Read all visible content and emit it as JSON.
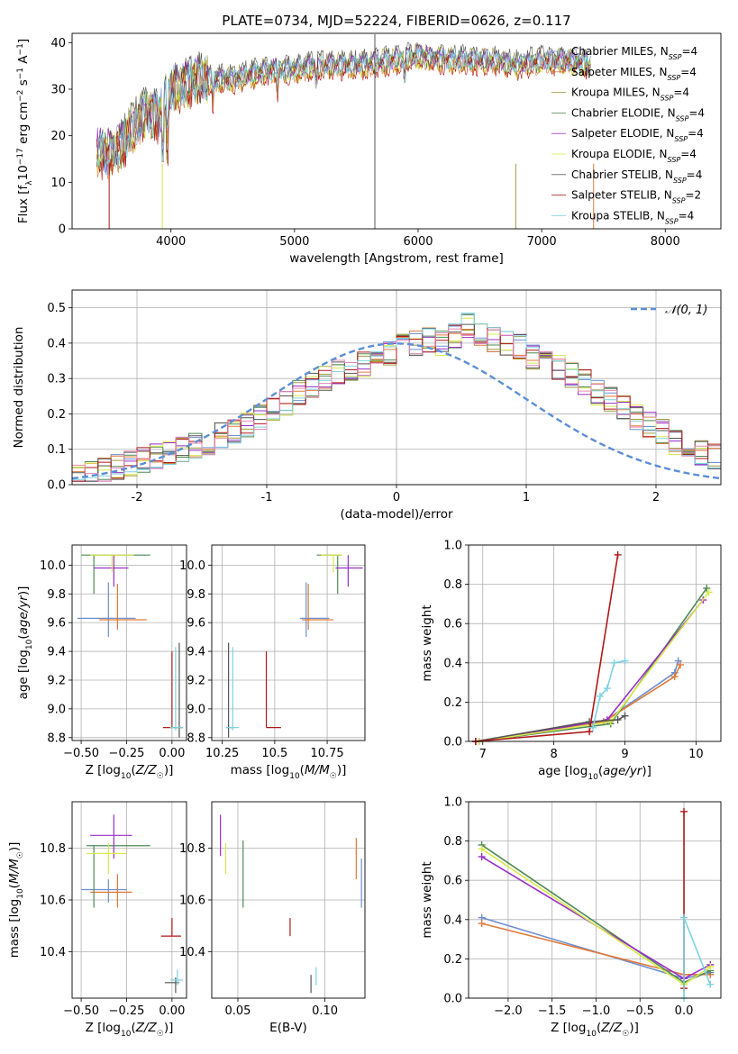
{
  "figure_title": "PLATE=0734, MJD=52224, FIBERID=0626, z=0.117",
  "colors": {
    "Chabrier MILES": "#6e8fd0",
    "Salpeter MILES": "#e07a3a",
    "Kroupa MILES": "#a39a3c",
    "Chabrier ELODIE": "#4f8a55",
    "Salpeter ELODIE": "#9a2ec9",
    "Kroupa ELODIE": "#d9e84a",
    "Chabrier STELIB": "#555555",
    "Salpeter STELIB": "#b01818",
    "Kroupa STELIB": "#7dd2e0",
    "hist_pink": "#e48ab4",
    "gauss": "#5b8ed6"
  },
  "chart_data": [
    {
      "id": "spectrum",
      "type": "line",
      "title": "PLATE=0734, MJD=52224, FIBERID=0626, z=0.117",
      "xlabel": "wavelength [Angstrom, rest frame]",
      "ylabel": "Flux [f_λ 10^-17 erg cm^-2 s^-1 A^-1]",
      "xlim": [
        3200,
        8450
      ],
      "ylim": [
        0,
        42
      ],
      "xticks": [
        4000,
        5000,
        6000,
        7000,
        8000
      ],
      "yticks": [
        0,
        10,
        20,
        30,
        40
      ],
      "legend_position": "top-right",
      "x": [
        3400,
        3500,
        3600,
        3700,
        3800,
        3900,
        4000,
        4200,
        4500,
        4800,
        5000,
        5200,
        5500,
        5800,
        6000,
        6300,
        6600,
        6800,
        7000,
        7200,
        7400
      ],
      "y": [
        16.5,
        16,
        18,
        22,
        25,
        24,
        30,
        32,
        32,
        34,
        34,
        35,
        35,
        36,
        37,
        36,
        36,
        35,
        36,
        36,
        35
      ],
      "series": [
        {
          "name": "Chabrier MILES",
          "label": "Chabrier MILES, N",
          "sub": "SSP",
          "suffix": "=4"
        },
        {
          "name": "Salpeter MILES",
          "label": "Salpeter MILES, N",
          "sub": "SSP",
          "suffix": "=4"
        },
        {
          "name": "Kroupa MILES",
          "label": "Kroupa MILES, N",
          "sub": "SSP",
          "suffix": "=4"
        },
        {
          "name": "Chabrier ELODIE",
          "label": "Chabrier ELODIE, N",
          "sub": "SSP",
          "suffix": "=4"
        },
        {
          "name": "Salpeter ELODIE",
          "label": "Salpeter ELODIE, N",
          "sub": "SSP",
          "suffix": "=4"
        },
        {
          "name": "Kroupa ELODIE",
          "label": "Kroupa ELODIE, N",
          "sub": "SSP",
          "suffix": "=4"
        },
        {
          "name": "Chabrier STELIB",
          "label": "Chabrier STELIB, N",
          "sub": "SSP",
          "suffix": "=4"
        },
        {
          "name": "Salpeter STELIB",
          "label": "Salpeter STELIB, N",
          "sub": "SSP",
          "suffix": "=2"
        },
        {
          "name": "Kroupa STELIB",
          "label": "Kroupa STELIB, N",
          "sub": "SSP",
          "suffix": "=4"
        }
      ]
    },
    {
      "id": "residuals",
      "type": "line",
      "xlabel": "(data-model)/error",
      "ylabel": "Normed distribution",
      "xlim": [
        -2.5,
        2.5
      ],
      "ylim": [
        0,
        0.55
      ],
      "xticks": [
        -2,
        -1,
        0,
        1,
        2
      ],
      "yticks": [
        0.0,
        0.1,
        0.2,
        0.3,
        0.4,
        0.5
      ],
      "grid": true,
      "legend_position": "top-right",
      "gauss_label": "𝒩(0, 1)",
      "bin_width": 0.1,
      "bin_start": -2.5,
      "hist_values": [
        0.02,
        0.03,
        0.04,
        0.05,
        0.06,
        0.07,
        0.08,
        0.09,
        0.1,
        0.11,
        0.12,
        0.14,
        0.15,
        0.17,
        0.19,
        0.21,
        0.23,
        0.26,
        0.28,
        0.3,
        0.32,
        0.33,
        0.34,
        0.36,
        0.37,
        0.39,
        0.4,
        0.41,
        0.4,
        0.42,
        0.45,
        0.42,
        0.41,
        0.4,
        0.39,
        0.36,
        0.35,
        0.33,
        0.31,
        0.29,
        0.26,
        0.24,
        0.22,
        0.19,
        0.17,
        0.15,
        0.12,
        0.11,
        0.09,
        0.08
      ]
    },
    {
      "id": "age_vs_Z",
      "type": "scatter",
      "xlabel": "Z [log10(Z/Z☉)]",
      "ylabel": "age [log10(age/yr)]",
      "xlim": [
        -0.55,
        0.08
      ],
      "ylim": [
        8.78,
        10.14
      ],
      "xticks": [
        -0.5,
        -0.25,
        0.0
      ],
      "xticklabels": [
        "−0.50",
        "−0.25",
        "0.00"
      ],
      "yticks": [
        8.8,
        9.0,
        9.2,
        9.4,
        9.6,
        9.8,
        10.0
      ],
      "grid": true,
      "points": [
        {
          "s": "Chabrier MILES",
          "x": -0.35,
          "y": 9.63,
          "xlo": -0.52,
          "xhi": -0.2,
          "ylo": 9.5,
          "yhi": 9.88
        },
        {
          "s": "Salpeter MILES",
          "x": -0.3,
          "y": 9.62,
          "xlo": -0.4,
          "xhi": -0.14,
          "ylo": 9.55,
          "yhi": 9.87
        },
        {
          "s": "Chabrier ELODIE",
          "x": -0.43,
          "y": 10.07,
          "xlo": -0.5,
          "xhi": -0.12,
          "ylo": 9.8,
          "yhi": 10.07
        },
        {
          "s": "Salpeter ELODIE",
          "x": -0.32,
          "y": 9.98,
          "xlo": -0.43,
          "xhi": -0.24,
          "ylo": 9.85,
          "yhi": 10.07
        },
        {
          "s": "Kroupa ELODIE",
          "x": -0.33,
          "y": 10.07,
          "xlo": -0.45,
          "xhi": -0.21,
          "ylo": 9.95,
          "yhi": 10.07
        },
        {
          "s": "Salpeter STELIB",
          "x": 0.0,
          "y": 8.87,
          "xlo": -0.05,
          "xhi": 0.0,
          "ylo": 8.87,
          "yhi": 9.4
        },
        {
          "s": "Chabrier STELIB",
          "x": 0.04,
          "y": 8.87,
          "xlo": 0.0,
          "xhi": 0.06,
          "ylo": 8.8,
          "yhi": 9.46
        },
        {
          "s": "Kroupa STELIB",
          "x": 0.02,
          "y": 8.87,
          "xlo": -0.01,
          "xhi": 0.06,
          "ylo": 8.85,
          "yhi": 9.43
        }
      ]
    },
    {
      "id": "age_vs_mass",
      "type": "scatter",
      "xlabel": "mass [log10(M/M☉)]",
      "xlim": [
        10.2,
        10.93
      ],
      "ylim": [
        8.78,
        10.14
      ],
      "xticks": [
        10.25,
        10.5,
        10.75
      ],
      "yticks": [
        8.8,
        9.0,
        9.2,
        9.4,
        9.6,
        9.8,
        10.0
      ],
      "grid": true,
      "points": [
        {
          "s": "Chabrier MILES",
          "x": 10.65,
          "y": 9.63,
          "xlo": 10.62,
          "xhi": 10.76,
          "ylo": 9.5,
          "yhi": 9.88
        },
        {
          "s": "Salpeter MILES",
          "x": 10.66,
          "y": 9.62,
          "xlo": 10.63,
          "xhi": 10.78,
          "ylo": 9.55,
          "yhi": 9.87
        },
        {
          "s": "Chabrier ELODIE",
          "x": 10.8,
          "y": 10.07,
          "xlo": 10.7,
          "xhi": 10.82,
          "ylo": 9.8,
          "yhi": 10.07
        },
        {
          "s": "Salpeter ELODIE",
          "x": 10.85,
          "y": 9.98,
          "xlo": 10.79,
          "xhi": 10.92,
          "ylo": 9.85,
          "yhi": 10.07
        },
        {
          "s": "Kroupa ELODIE",
          "x": 10.78,
          "y": 10.07,
          "xlo": 10.72,
          "xhi": 10.82,
          "ylo": 9.95,
          "yhi": 10.07
        },
        {
          "s": "Salpeter STELIB",
          "x": 10.46,
          "y": 8.87,
          "xlo": 10.46,
          "xhi": 10.53,
          "ylo": 8.87,
          "yhi": 9.4
        },
        {
          "s": "Chabrier STELIB",
          "x": 10.28,
          "y": 8.87,
          "xlo": 10.27,
          "xhi": 10.3,
          "ylo": 8.8,
          "yhi": 9.46
        },
        {
          "s": "Kroupa STELIB",
          "x": 10.3,
          "y": 8.87,
          "xlo": 10.27,
          "xhi": 10.33,
          "ylo": 8.85,
          "yhi": 9.43
        }
      ]
    },
    {
      "id": "weight_vs_age",
      "type": "line",
      "xlabel": "age [log10(age/yr)]",
      "ylabel": "mass weight",
      "xlim": [
        6.8,
        10.35
      ],
      "ylim": [
        0,
        1.0
      ],
      "xticks": [
        7,
        8,
        9,
        10
      ],
      "yticks": [
        0.0,
        0.2,
        0.4,
        0.6,
        0.8,
        1.0
      ],
      "grid": true,
      "series": [
        {
          "s": "Chabrier MILES",
          "x": [
            6.9,
            8.7,
            9.7,
            9.75
          ],
          "y": [
            0.0,
            0.1,
            0.35,
            0.41
          ]
        },
        {
          "s": "Salpeter MILES",
          "x": [
            6.9,
            8.7,
            9.7,
            9.78
          ],
          "y": [
            0.0,
            0.1,
            0.33,
            0.39
          ]
        },
        {
          "s": "Chabrier ELODIE",
          "x": [
            6.95,
            8.8,
            10.15
          ],
          "y": [
            0.0,
            0.09,
            0.78
          ]
        },
        {
          "s": "Salpeter ELODIE",
          "x": [
            6.95,
            8.75,
            10.1
          ],
          "y": [
            0.0,
            0.11,
            0.72
          ]
        },
        {
          "s": "Kroupa ELODIE",
          "x": [
            6.95,
            8.8,
            10.18
          ],
          "y": [
            0.0,
            0.1,
            0.76
          ]
        },
        {
          "s": "Chabrier STELIB",
          "x": [
            6.9,
            8.5,
            8.9,
            9.0
          ],
          "y": [
            0.0,
            0.1,
            0.11,
            0.13
          ]
        },
        {
          "s": "Salpeter STELIB",
          "x": [
            6.9,
            8.5,
            8.9
          ],
          "y": [
            0.0,
            0.05,
            0.95
          ]
        },
        {
          "s": "Kroupa STELIB",
          "x": [
            8.55,
            8.65,
            8.75,
            8.85,
            9.0
          ],
          "y": [
            0.07,
            0.23,
            0.27,
            0.4,
            0.41
          ]
        }
      ]
    },
    {
      "id": "mass_vs_Z",
      "type": "scatter",
      "xlabel": "Z [log10(Z/Z☉)]",
      "ylabel": "mass [log10(M/M☉)]",
      "xlim": [
        -0.55,
        0.08
      ],
      "ylim": [
        10.22,
        10.98
      ],
      "xticks": [
        -0.5,
        -0.25,
        0.0
      ],
      "xticklabels": [
        "−0.50",
        "−0.25",
        "0.00"
      ],
      "yticks": [
        10.4,
        10.6,
        10.8
      ],
      "grid": true,
      "points": [
        {
          "s": "Chabrier MILES",
          "x": -0.35,
          "y": 10.64,
          "xlo": -0.5,
          "xhi": -0.25,
          "ylo": 10.59,
          "yhi": 10.68
        },
        {
          "s": "Salpeter MILES",
          "x": -0.3,
          "y": 10.63,
          "xlo": -0.45,
          "xhi": -0.22,
          "ylo": 10.57,
          "yhi": 10.7
        },
        {
          "s": "Chabrier ELODIE",
          "x": -0.43,
          "y": 10.81,
          "xlo": -0.47,
          "xhi": -0.12,
          "ylo": 10.57,
          "yhi": 10.81
        },
        {
          "s": "Salpeter ELODIE",
          "x": -0.32,
          "y": 10.85,
          "xlo": -0.45,
          "xhi": -0.22,
          "ylo": 10.76,
          "yhi": 10.93
        },
        {
          "s": "Kroupa ELODIE",
          "x": -0.35,
          "y": 10.78,
          "xlo": -0.47,
          "xhi": -0.25,
          "ylo": 10.7,
          "yhi": 10.82
        },
        {
          "s": "Salpeter STELIB",
          "x": 0.0,
          "y": 10.46,
          "xlo": -0.06,
          "xhi": 0.05,
          "ylo": 10.46,
          "yhi": 10.53
        },
        {
          "s": "Chabrier STELIB",
          "x": 0.02,
          "y": 10.28,
          "xlo": -0.04,
          "xhi": 0.04,
          "ylo": 10.24,
          "yhi": 10.3
        },
        {
          "s": "Kroupa STELIB",
          "x": 0.03,
          "y": 10.29,
          "xlo": -0.01,
          "xhi": 0.06,
          "ylo": 10.27,
          "yhi": 10.33
        }
      ]
    },
    {
      "id": "mass_vs_ebv",
      "type": "scatter",
      "xlabel": "E(B-V)",
      "xlim": [
        0.035,
        0.123
      ],
      "ylim": [
        10.22,
        10.98
      ],
      "xticks": [
        0.05,
        0.1
      ],
      "xticklabels": [
        "0.05",
        "0.10"
      ],
      "yticks": [
        10.4,
        10.6,
        10.8
      ],
      "grid": true,
      "points": [
        {
          "s": "Salpeter ELODIE",
          "x": 0.04,
          "ylo": 10.77,
          "yhi": 10.93
        },
        {
          "s": "Kroupa ELODIE",
          "x": 0.043,
          "ylo": 10.7,
          "yhi": 10.82
        },
        {
          "s": "Chabrier ELODIE",
          "x": 0.053,
          "ylo": 10.57,
          "yhi": 10.83
        },
        {
          "s": "Salpeter STELIB",
          "x": 0.08,
          "ylo": 10.46,
          "yhi": 10.53
        },
        {
          "s": "Chabrier STELIB",
          "x": 0.092,
          "ylo": 10.24,
          "yhi": 10.31
        },
        {
          "s": "Kroupa STELIB",
          "x": 0.095,
          "ylo": 10.27,
          "yhi": 10.34
        },
        {
          "s": "Salpeter MILES",
          "x": 0.118,
          "ylo": 10.68,
          "yhi": 10.84
        },
        {
          "s": "Chabrier MILES",
          "x": 0.121,
          "ylo": 10.57,
          "yhi": 10.76
        }
      ]
    },
    {
      "id": "weight_vs_Z",
      "type": "line",
      "xlabel": "Z [log10(Z/Z☉)]",
      "ylabel": "mass weight",
      "xlim": [
        -2.45,
        0.42
      ],
      "ylim": [
        0,
        1.0
      ],
      "xticks": [
        -2.0,
        -1.5,
        -1.0,
        -0.5,
        0.0
      ],
      "xticklabels": [
        "−2.0",
        "−1.5",
        "−1.0",
        "−0.5",
        "0.0"
      ],
      "yticks": [
        0.0,
        0.2,
        0.4,
        0.6,
        0.8,
        1.0
      ],
      "grid": true,
      "series": [
        {
          "s": "Chabrier MILES",
          "x": [
            -2.3,
            0.0,
            0.3
          ],
          "y": [
            0.41,
            0.1,
            0.13
          ]
        },
        {
          "s": "Salpeter MILES",
          "x": [
            -2.3,
            0.0,
            0.3
          ],
          "y": [
            0.38,
            0.12,
            0.12
          ]
        },
        {
          "s": "Chabrier ELODIE",
          "x": [
            -2.3,
            0.0,
            0.3
          ],
          "y": [
            0.78,
            0.08,
            0.14
          ]
        },
        {
          "s": "Salpeter ELODIE",
          "x": [
            -2.3,
            0.0,
            0.3
          ],
          "y": [
            0.72,
            0.1,
            0.17
          ]
        },
        {
          "s": "Kroupa ELODIE",
          "x": [
            -2.3,
            0.0,
            0.3
          ],
          "y": [
            0.76,
            0.07,
            0.16
          ]
        },
        {
          "s": "Salpeter STELIB",
          "x": [
            0.0,
            0.0
          ],
          "y": [
            0.05,
            0.95
          ]
        },
        {
          "s": "Kroupa STELIB",
          "x": [
            0.0,
            0.0,
            0.3
          ],
          "y": [
            0.0,
            0.41,
            0.07
          ]
        }
      ]
    }
  ]
}
